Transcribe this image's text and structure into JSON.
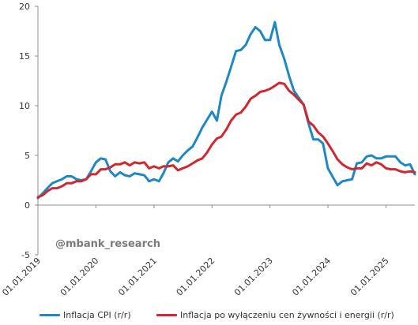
{
  "chart_data": {
    "type": "line",
    "title": "",
    "xlabel": "",
    "ylabel": "",
    "ylim": [
      -5,
      20
    ],
    "yticks": [
      -5,
      0,
      5,
      10,
      15,
      20
    ],
    "xlim": [
      "2019-01-01",
      "2025-07-01"
    ],
    "xticks": [
      {
        "date": "2019-01-01",
        "label": "01.01.2019"
      },
      {
        "date": "2020-01-01",
        "label": "01.01.2020"
      },
      {
        "date": "2021-01-01",
        "label": "01.01.2021"
      },
      {
        "date": "2022-01-01",
        "label": "01.01.2022"
      },
      {
        "date": "2023-01-01",
        "label": "01.01.2023"
      },
      {
        "date": "2024-01-01",
        "label": "01.01.2024"
      },
      {
        "date": "2025-01-01",
        "label": "01.01.2025"
      }
    ],
    "grid": false,
    "legend_position": "bottom",
    "watermark": "@mbank_research",
    "series": [
      {
        "name": "Inflacja CPI (r/r)",
        "color": "#1f88c4",
        "points": [
          [
            "2019-01-01",
            0.7
          ],
          [
            "2019-02-01",
            1.2
          ],
          [
            "2019-03-01",
            1.7
          ],
          [
            "2019-04-01",
            2.2
          ],
          [
            "2019-05-01",
            2.4
          ],
          [
            "2019-06-01",
            2.6
          ],
          [
            "2019-07-01",
            2.9
          ],
          [
            "2019-08-01",
            2.9
          ],
          [
            "2019-09-01",
            2.6
          ],
          [
            "2019-10-01",
            2.5
          ],
          [
            "2019-11-01",
            2.6
          ],
          [
            "2019-12-01",
            3.4
          ],
          [
            "2020-01-01",
            4.3
          ],
          [
            "2020-02-01",
            4.7
          ],
          [
            "2020-03-01",
            4.6
          ],
          [
            "2020-04-01",
            3.4
          ],
          [
            "2020-05-01",
            2.9
          ],
          [
            "2020-06-01",
            3.3
          ],
          [
            "2020-07-01",
            3.0
          ],
          [
            "2020-08-01",
            2.9
          ],
          [
            "2020-09-01",
            3.2
          ],
          [
            "2020-10-01",
            3.1
          ],
          [
            "2020-11-01",
            3.0
          ],
          [
            "2020-12-01",
            2.4
          ],
          [
            "2021-01-01",
            2.6
          ],
          [
            "2021-02-01",
            2.4
          ],
          [
            "2021-03-01",
            3.2
          ],
          [
            "2021-04-01",
            4.3
          ],
          [
            "2021-05-01",
            4.7
          ],
          [
            "2021-06-01",
            4.4
          ],
          [
            "2021-07-01",
            5.0
          ],
          [
            "2021-08-01",
            5.5
          ],
          [
            "2021-09-01",
            5.9
          ],
          [
            "2021-10-01",
            6.8
          ],
          [
            "2021-11-01",
            7.8
          ],
          [
            "2021-12-01",
            8.6
          ],
          [
            "2022-01-01",
            9.4
          ],
          [
            "2022-02-01",
            8.5
          ],
          [
            "2022-03-01",
            11.0
          ],
          [
            "2022-04-01",
            12.4
          ],
          [
            "2022-05-01",
            13.9
          ],
          [
            "2022-06-01",
            15.5
          ],
          [
            "2022-07-01",
            15.6
          ],
          [
            "2022-08-01",
            16.1
          ],
          [
            "2022-09-01",
            17.2
          ],
          [
            "2022-10-01",
            17.9
          ],
          [
            "2022-11-01",
            17.5
          ],
          [
            "2022-12-01",
            16.6
          ],
          [
            "2023-01-01",
            16.6
          ],
          [
            "2023-02-01",
            18.4
          ],
          [
            "2023-03-01",
            16.1
          ],
          [
            "2023-04-01",
            14.7
          ],
          [
            "2023-05-01",
            13.0
          ],
          [
            "2023-06-01",
            11.5
          ],
          [
            "2023-07-01",
            10.8
          ],
          [
            "2023-08-01",
            10.1
          ],
          [
            "2023-09-01",
            8.2
          ],
          [
            "2023-10-01",
            6.6
          ],
          [
            "2023-11-01",
            6.6
          ],
          [
            "2023-12-01",
            6.2
          ],
          [
            "2024-01-01",
            3.7
          ],
          [
            "2024-02-01",
            2.8
          ],
          [
            "2024-03-01",
            2.0
          ],
          [
            "2024-04-01",
            2.4
          ],
          [
            "2024-05-01",
            2.5
          ],
          [
            "2024-06-01",
            2.6
          ],
          [
            "2024-07-01",
            4.2
          ],
          [
            "2024-08-01",
            4.3
          ],
          [
            "2024-09-01",
            4.9
          ],
          [
            "2024-10-01",
            5.0
          ],
          [
            "2024-11-01",
            4.7
          ],
          [
            "2024-12-01",
            4.7
          ],
          [
            "2025-01-01",
            4.9
          ],
          [
            "2025-02-01",
            4.9
          ],
          [
            "2025-03-01",
            4.9
          ],
          [
            "2025-04-01",
            4.3
          ],
          [
            "2025-05-01",
            4.0
          ],
          [
            "2025-06-01",
            4.1
          ],
          [
            "2025-07-01",
            3.1
          ]
        ]
      },
      {
        "name": "Inflacja po wyłączeniu cen żywności i energii (r/r)",
        "color": "#d0282e",
        "points": [
          [
            "2019-01-01",
            0.8
          ],
          [
            "2019-02-01",
            1.0
          ],
          [
            "2019-03-01",
            1.4
          ],
          [
            "2019-04-01",
            1.7
          ],
          [
            "2019-05-01",
            1.7
          ],
          [
            "2019-06-01",
            1.9
          ],
          [
            "2019-07-01",
            2.2
          ],
          [
            "2019-08-01",
            2.2
          ],
          [
            "2019-09-01",
            2.4
          ],
          [
            "2019-10-01",
            2.4
          ],
          [
            "2019-11-01",
            2.6
          ],
          [
            "2019-12-01",
            3.1
          ],
          [
            "2020-01-01",
            3.1
          ],
          [
            "2020-02-01",
            3.6
          ],
          [
            "2020-03-01",
            3.6
          ],
          [
            "2020-04-01",
            3.8
          ],
          [
            "2020-05-01",
            4.1
          ],
          [
            "2020-06-01",
            4.1
          ],
          [
            "2020-07-01",
            4.3
          ],
          [
            "2020-08-01",
            4.0
          ],
          [
            "2020-09-01",
            4.3
          ],
          [
            "2020-10-01",
            4.2
          ],
          [
            "2020-11-01",
            4.3
          ],
          [
            "2020-12-01",
            3.7
          ],
          [
            "2021-01-01",
            3.9
          ],
          [
            "2021-02-01",
            3.7
          ],
          [
            "2021-03-01",
            3.9
          ],
          [
            "2021-04-01",
            3.9
          ],
          [
            "2021-05-01",
            4.0
          ],
          [
            "2021-06-01",
            3.5
          ],
          [
            "2021-07-01",
            3.7
          ],
          [
            "2021-08-01",
            3.9
          ],
          [
            "2021-09-01",
            4.2
          ],
          [
            "2021-10-01",
            4.5
          ],
          [
            "2021-11-01",
            4.7
          ],
          [
            "2021-12-01",
            5.3
          ],
          [
            "2022-01-01",
            6.1
          ],
          [
            "2022-02-01",
            6.7
          ],
          [
            "2022-03-01",
            6.9
          ],
          [
            "2022-04-01",
            7.6
          ],
          [
            "2022-05-01",
            8.5
          ],
          [
            "2022-06-01",
            9.1
          ],
          [
            "2022-07-01",
            9.3
          ],
          [
            "2022-08-01",
            9.9
          ],
          [
            "2022-09-01",
            10.7
          ],
          [
            "2022-10-01",
            11.0
          ],
          [
            "2022-11-01",
            11.4
          ],
          [
            "2022-12-01",
            11.5
          ],
          [
            "2023-01-01",
            11.7
          ],
          [
            "2023-02-01",
            12.0
          ],
          [
            "2023-03-01",
            12.3
          ],
          [
            "2023-04-01",
            12.2
          ],
          [
            "2023-05-01",
            11.5
          ],
          [
            "2023-06-01",
            11.1
          ],
          [
            "2023-07-01",
            10.6
          ],
          [
            "2023-08-01",
            10.1
          ],
          [
            "2023-09-01",
            8.4
          ],
          [
            "2023-10-01",
            8.0
          ],
          [
            "2023-11-01",
            7.3
          ],
          [
            "2023-12-01",
            6.9
          ],
          [
            "2024-01-01",
            6.2
          ],
          [
            "2024-02-01",
            5.4
          ],
          [
            "2024-03-01",
            4.6
          ],
          [
            "2024-04-01",
            4.1
          ],
          [
            "2024-05-01",
            3.8
          ],
          [
            "2024-06-01",
            3.6
          ],
          [
            "2024-07-01",
            3.7
          ],
          [
            "2024-08-01",
            3.7
          ],
          [
            "2024-09-01",
            4.2
          ],
          [
            "2024-10-01",
            4.0
          ],
          [
            "2024-11-01",
            4.3
          ],
          [
            "2024-12-01",
            4.1
          ],
          [
            "2025-01-01",
            3.7
          ],
          [
            "2025-02-01",
            3.6
          ],
          [
            "2025-03-01",
            3.6
          ],
          [
            "2025-04-01",
            3.4
          ],
          [
            "2025-05-01",
            3.3
          ],
          [
            "2025-06-01",
            3.4
          ],
          [
            "2025-07-01",
            3.3
          ]
        ]
      }
    ]
  }
}
